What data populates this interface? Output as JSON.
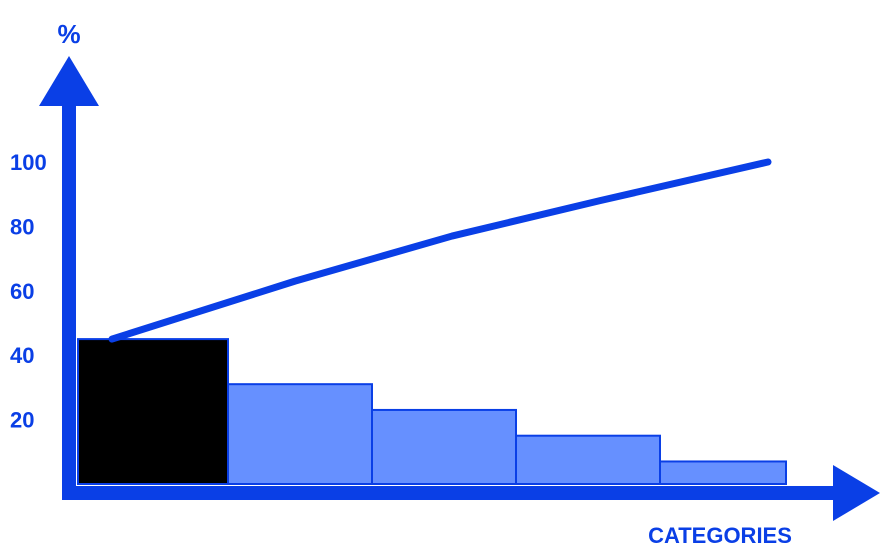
{
  "colors": {
    "axis": "#0a3fe6",
    "highlight_bar": "#000000",
    "bar": "#6690ff",
    "bar_stroke": "#0a3fe6",
    "line": "#0a3fe6"
  },
  "chart_data": {
    "type": "bar",
    "xlabel": "CATEGORIES",
    "ylabel": "%",
    "ylim": [
      0,
      100
    ],
    "yticks": [
      20,
      40,
      60,
      80,
      100
    ],
    "grid": false,
    "series": [
      {
        "values": [
          45,
          31,
          23,
          15,
          7
        ]
      },
      {
        "type": "line",
        "values": [
          45,
          63,
          77,
          88,
          100
        ]
      }
    ]
  }
}
